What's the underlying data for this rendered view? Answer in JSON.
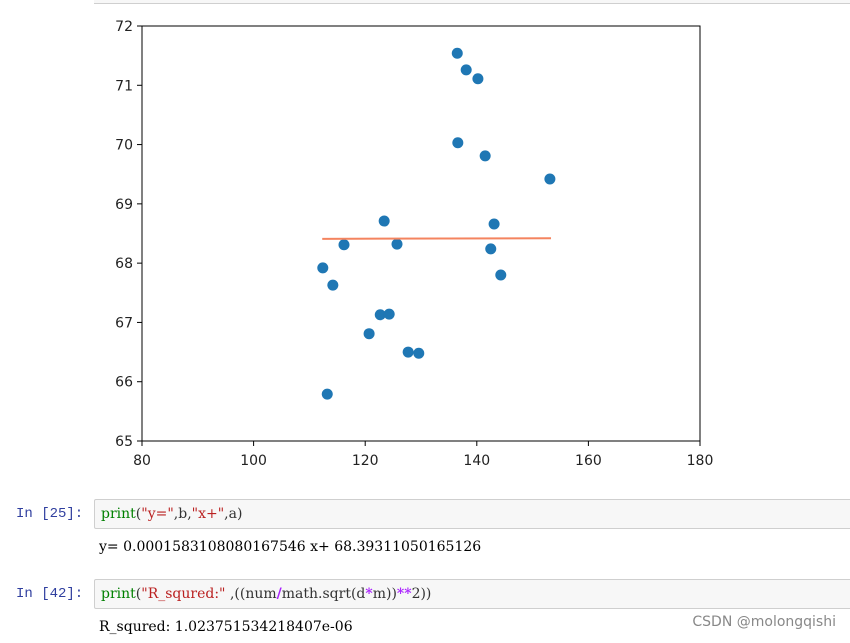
{
  "chart_data": {
    "type": "scatter",
    "xlim": [
      80,
      180
    ],
    "xticks": [
      80,
      100,
      120,
      140,
      160,
      180
    ],
    "ylim": [
      65,
      72
    ],
    "yticks": [
      65,
      66,
      67,
      68,
      69,
      70,
      71,
      72
    ],
    "series": [
      {
        "type": "scatter",
        "color": "#1f77b4",
        "x": [
          136.5,
          138.1,
          140.2,
          136.6,
          141.5,
          153.1,
          123.4,
          143.1,
          116.2,
          125.7,
          142.5,
          112.4,
          144.3,
          114.2,
          122.7,
          124.3,
          120.7,
          127.7,
          129.6,
          113.2
        ],
        "values": [
          71.54,
          71.26,
          71.11,
          70.03,
          69.81,
          69.42,
          68.71,
          68.66,
          68.31,
          68.32,
          68.24,
          67.92,
          67.8,
          67.63,
          67.13,
          67.14,
          66.81,
          66.5,
          66.48,
          65.79
        ]
      },
      {
        "type": "line",
        "color": "#f4845f",
        "x": [
          112.3,
          153.3
        ],
        "values": [
          68.41,
          68.42
        ]
      }
    ]
  },
  "cells": [
    {
      "prompt": "In  [25]:",
      "code": [
        "print",
        "(",
        "\"y=\"",
        ",b,",
        "\"x+\"",
        ",a)"
      ],
      "output": "y= 0.0001583108080167546 x+ 68.39311050165126"
    },
    {
      "prompt": "In  [42]:",
      "code": [
        "print",
        "(",
        "\"R_squred:\"",
        " ,((num",
        "/",
        "math.sqrt(d",
        "*",
        "m))",
        "**",
        "2))"
      ],
      "output": "R_squred: 1.023751534218407e-06"
    }
  ],
  "watermark": "CSDN @molongqishi"
}
